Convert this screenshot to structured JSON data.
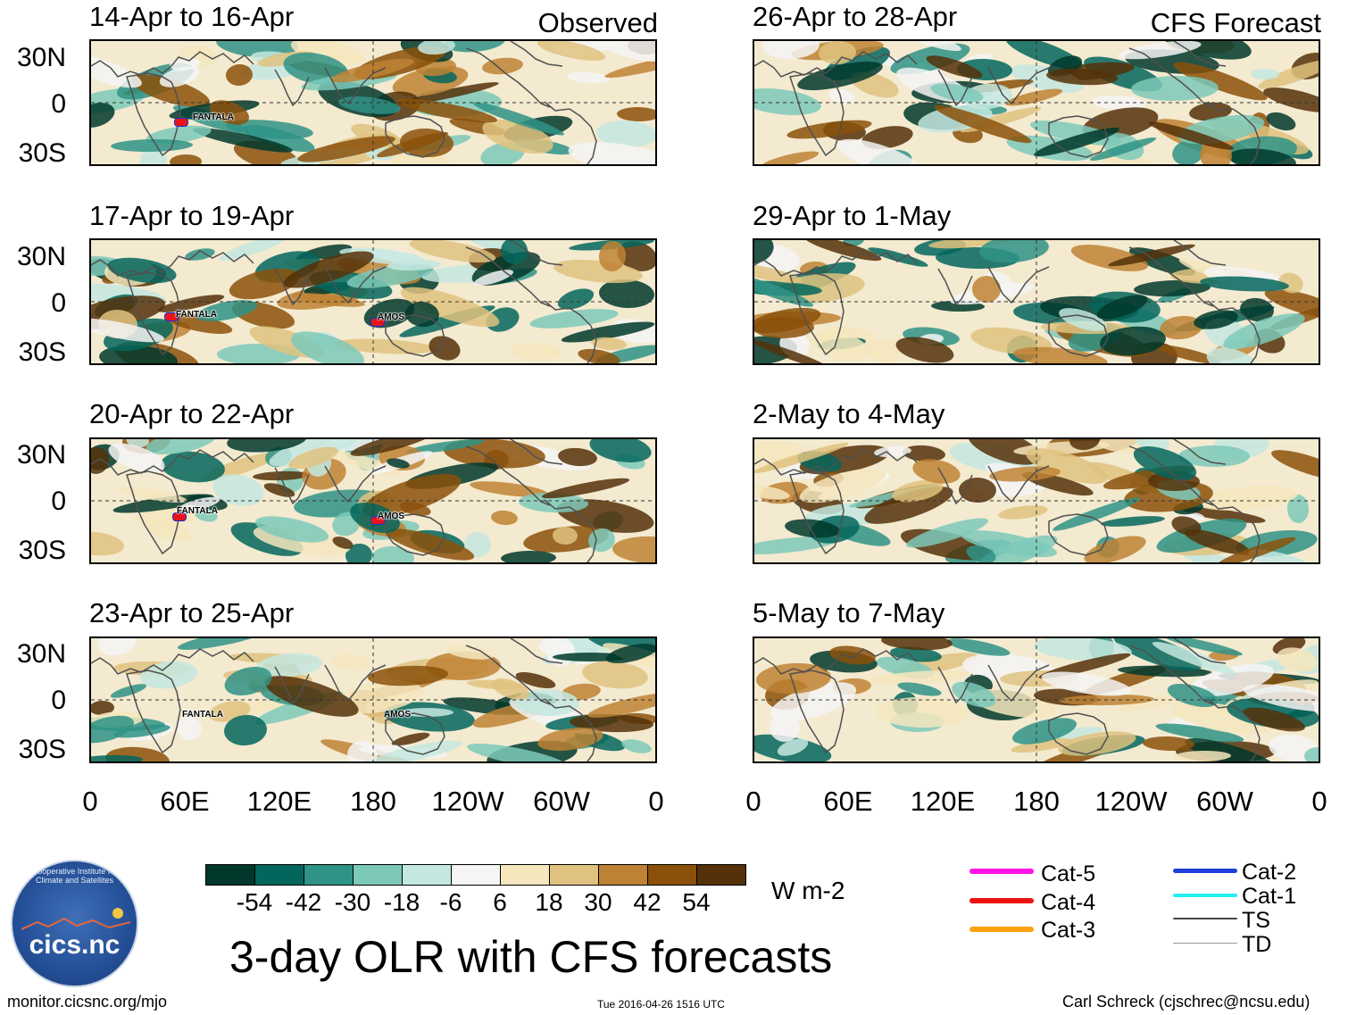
{
  "observed_label": "Observed",
  "forecast_label": "CFS Forecast",
  "panels": [
    {
      "title": "14-Apr to 16-Apr",
      "column": "observed",
      "storms": [
        {
          "name": "FANTALA"
        }
      ]
    },
    {
      "title": "17-Apr to 19-Apr",
      "column": "observed",
      "storms": [
        {
          "name": "FANTALA"
        },
        {
          "name": "AMOS"
        }
      ]
    },
    {
      "title": "20-Apr to 22-Apr",
      "column": "observed",
      "storms": [
        {
          "name": "FANTALA"
        },
        {
          "name": "AMOS"
        }
      ]
    },
    {
      "title": "23-Apr to 25-Apr",
      "column": "observed",
      "storms": [
        {
          "name": "FANTALA"
        },
        {
          "name": "AMOS"
        }
      ]
    },
    {
      "title": "26-Apr to 28-Apr",
      "column": "forecast",
      "storms": []
    },
    {
      "title": "29-Apr to 1-May",
      "column": "forecast",
      "storms": []
    },
    {
      "title": "2-May to 4-May",
      "column": "forecast",
      "storms": []
    },
    {
      "title": "5-May to 7-May",
      "column": "forecast",
      "storms": []
    }
  ],
  "lat_labels": [
    "30N",
    "0",
    "30S"
  ],
  "lon_labels": [
    "0",
    "60E",
    "120E",
    "180",
    "120W",
    "60W",
    "0"
  ],
  "colorbar": {
    "colors": [
      "#00382b",
      "#03665d",
      "#2f9386",
      "#7cc9ba",
      "#c4e8e0",
      "#f5f5f5",
      "#f5e6bd",
      "#dfc27f",
      "#be8234",
      "#8b510a",
      "#553109"
    ],
    "tick_labels": [
      "-54",
      "-42",
      "-30",
      "-18",
      "-6",
      "6",
      "18",
      "30",
      "42",
      "54"
    ],
    "units": "W m-2"
  },
  "main_title": "3-day OLR with CFS forecasts",
  "legend": [
    {
      "label": "Cat-5",
      "color": "#ff14e6"
    },
    {
      "label": "Cat-4",
      "color": "#ee1111"
    },
    {
      "label": "Cat-3",
      "color": "#ffa010"
    },
    {
      "label": "Cat-2",
      "color": "#1f3fd8"
    },
    {
      "label": "Cat-1",
      "color": "#23f0f0"
    },
    {
      "label": "TS",
      "color": "#444444"
    },
    {
      "label": "TD",
      "color": "#999999"
    }
  ],
  "logo": {
    "text": "cics.nc",
    "arc_text": "Cooperative Institute for Climate and Satellites"
  },
  "footer": {
    "left": "monitor.cicsnc.org/mjo",
    "center": "Tue 2016-04-26 1516 UTC",
    "right": "Carl Schreck (cjschrec@ncsu.edu)"
  }
}
